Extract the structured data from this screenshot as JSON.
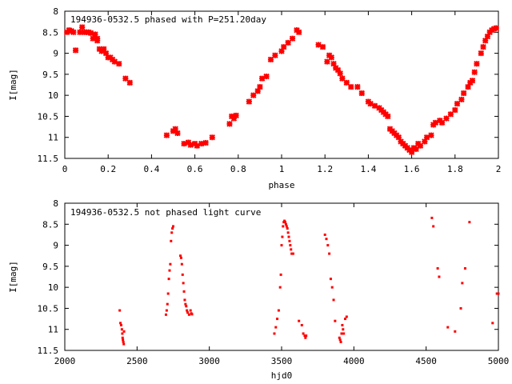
{
  "chart_data": [
    {
      "type": "scatter",
      "title": "194936-0532.5 phased with P=251.20day",
      "xlabel": "phase",
      "ylabel": "I[mag]",
      "xlim": [
        0,
        2
      ],
      "ylim": [
        11.5,
        8
      ],
      "y_inverted": true,
      "xticks": [
        "0",
        "0.2",
        "0.4",
        "0.6",
        "0.8",
        "1",
        "1.2",
        "1.4",
        "1.6",
        "1.8",
        "2"
      ],
      "yticks": [
        "8",
        "8.5",
        "9",
        "9.5",
        "10",
        "10.5",
        "11",
        "11.5"
      ],
      "marker": "star",
      "color": "#ff0000",
      "series": [
        {
          "x": [
            0.01,
            0.02,
            0.03,
            0.04,
            0.05,
            0.07,
            0.08,
            0.09,
            0.1,
            0.11,
            0.12,
            0.13,
            0.14,
            0.15,
            0.15,
            0.16,
            0.17,
            0.18,
            0.19,
            0.2,
            0.21,
            0.22,
            0.23,
            0.25,
            0.28,
            0.3,
            0.47,
            0.5,
            0.51,
            0.52,
            0.55,
            0.57,
            0.58,
            0.6,
            0.61,
            0.63,
            0.65,
            0.68,
            0.76,
            0.77,
            0.78,
            0.79,
            0.85,
            0.87,
            0.89,
            0.9,
            0.91,
            0.93,
            0.95,
            0.97,
            1.0,
            1.01,
            1.03,
            1.05,
            1.07,
            1.08,
            1.17,
            1.19,
            1.21,
            1.22,
            1.23,
            1.24,
            1.25,
            1.26,
            1.27,
            1.28,
            1.3,
            1.32,
            1.35,
            1.37,
            1.4,
            1.41,
            1.43,
            1.45,
            1.46,
            1.47,
            1.48,
            1.49,
            1.5,
            1.51,
            1.52,
            1.53,
            1.54,
            1.55,
            1.56,
            1.57,
            1.58,
            1.59,
            1.6,
            1.61,
            1.62,
            1.63,
            1.64,
            1.66,
            1.67,
            1.69,
            1.7,
            1.71,
            1.73,
            1.74,
            1.76,
            1.78,
            1.8,
            1.81,
            1.83,
            1.84,
            1.86,
            1.87,
            1.88,
            1.89,
            1.9,
            1.92,
            1.93,
            1.94,
            1.95,
            1.96,
            1.97,
            1.98,
            1.99
          ],
          "y": [
            8.5,
            8.45,
            8.47,
            8.5,
            8.93,
            8.5,
            8.38,
            8.5,
            8.5,
            8.5,
            8.52,
            8.65,
            8.55,
            8.65,
            8.7,
            8.9,
            8.95,
            8.9,
            9.0,
            9.1,
            9.1,
            9.15,
            9.2,
            9.25,
            9.6,
            9.7,
            10.95,
            10.85,
            10.8,
            10.9,
            11.15,
            11.12,
            11.18,
            11.15,
            11.2,
            11.15,
            11.13,
            11.0,
            10.68,
            10.5,
            10.55,
            10.48,
            10.15,
            10.0,
            9.9,
            9.8,
            9.6,
            9.55,
            9.15,
            9.05,
            8.95,
            8.85,
            8.75,
            8.65,
            8.45,
            8.5,
            8.8,
            8.85,
            9.2,
            9.05,
            9.1,
            9.25,
            9.35,
            9.4,
            9.48,
            9.6,
            9.7,
            9.8,
            9.8,
            9.95,
            10.15,
            10.2,
            10.25,
            10.3,
            10.35,
            10.4,
            10.45,
            10.5,
            10.8,
            10.85,
            10.9,
            10.95,
            11.0,
            11.1,
            11.15,
            11.2,
            11.25,
            11.3,
            11.35,
            11.25,
            11.28,
            11.15,
            11.2,
            11.1,
            11.0,
            10.95,
            10.7,
            10.65,
            10.6,
            10.65,
            10.55,
            10.45,
            10.35,
            10.2,
            10.1,
            9.95,
            9.8,
            9.7,
            9.65,
            9.45,
            9.25,
            9.0,
            8.85,
            8.7,
            8.6,
            8.5,
            8.45,
            8.42,
            8.4
          ]
        }
      ]
    },
    {
      "type": "scatter",
      "title": "194936-0532.5 not phased light curve",
      "xlabel": "hjd0",
      "ylabel": "I[mag]",
      "xlim": [
        2000,
        5000
      ],
      "ylim": [
        11.5,
        8
      ],
      "y_inverted": true,
      "xticks": [
        "2000",
        "2500",
        "3000",
        "3500",
        "4000",
        "4500",
        "5000"
      ],
      "yticks": [
        "8",
        "8.5",
        "9",
        "9.5",
        "10",
        "10.5",
        "11",
        "11.5"
      ],
      "marker": "dot",
      "color": "#ff0000",
      "series": [
        {
          "x": [
            2380,
            2385,
            2390,
            2395,
            2398,
            2400,
            2402,
            2405,
            2408,
            2410,
            2700,
            2705,
            2710,
            2715,
            2720,
            2725,
            2730,
            2735,
            2740,
            2745,
            2750,
            2800,
            2805,
            2810,
            2815,
            2820,
            2825,
            2830,
            2835,
            2840,
            2845,
            2850,
            2860,
            2870,
            2875,
            2880,
            3450,
            3460,
            3470,
            3480,
            3490,
            3495,
            3500,
            3505,
            3510,
            3515,
            3520,
            3525,
            3530,
            3535,
            3540,
            3545,
            3550,
            3555,
            3560,
            3565,
            3570,
            3580,
            3620,
            3640,
            3650,
            3660,
            3665,
            3670,
            3800,
            3810,
            3820,
            3830,
            3840,
            3850,
            3860,
            3870,
            3900,
            3905,
            3910,
            3915,
            3920,
            3925,
            3930,
            3940,
            3950,
            4540,
            4550,
            4580,
            4590,
            4650,
            4700,
            4740,
            4750,
            4770,
            4800,
            4960,
            4990,
            5000
          ],
          "y": [
            10.55,
            10.85,
            10.9,
            11.0,
            11.1,
            11.2,
            11.25,
            11.3,
            11.35,
            11.05,
            10.65,
            10.55,
            10.4,
            10.15,
            9.8,
            9.6,
            9.45,
            8.9,
            8.7,
            8.6,
            8.55,
            9.25,
            9.3,
            9.45,
            9.7,
            9.9,
            10.1,
            10.3,
            10.4,
            10.45,
            10.55,
            10.6,
            10.65,
            10.55,
            10.62,
            10.64,
            11.1,
            10.95,
            10.75,
            10.55,
            10.0,
            9.7,
            9.0,
            8.8,
            8.55,
            8.45,
            8.42,
            8.45,
            8.5,
            8.55,
            8.6,
            8.7,
            8.8,
            8.9,
            9.0,
            9.1,
            9.2,
            9.2,
            10.8,
            10.9,
            11.1,
            11.15,
            11.2,
            11.15,
            8.75,
            8.85,
            9.0,
            9.2,
            9.8,
            10.0,
            10.3,
            10.8,
            11.2,
            11.25,
            11.3,
            11.1,
            10.9,
            11.0,
            11.1,
            10.75,
            10.7,
            8.35,
            8.55,
            9.55,
            9.75,
            10.95,
            11.05,
            10.5,
            9.9,
            9.55,
            8.45,
            10.85,
            10.15,
            10.15
          ]
        }
      ]
    }
  ]
}
